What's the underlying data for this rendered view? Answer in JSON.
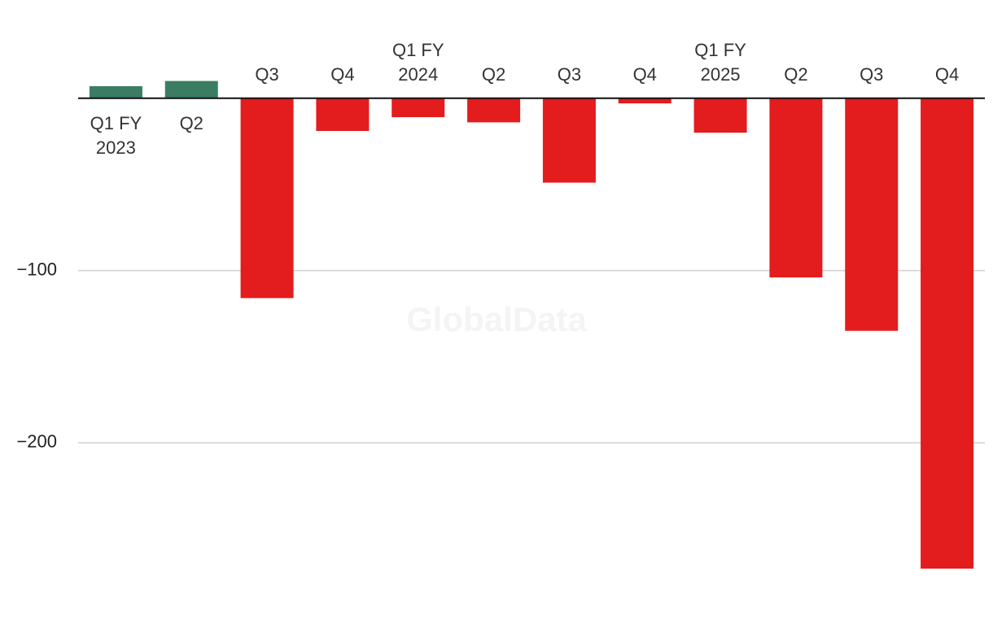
{
  "chart_data": {
    "type": "bar",
    "watermark": "GlobalData",
    "categories": [
      "Q1 FY 2023",
      "Q2",
      "Q3",
      "Q4",
      "Q1 FY 2024",
      "Q2",
      "Q3",
      "Q4",
      "Q1 FY 2025",
      "Q2",
      "Q3",
      "Q4"
    ],
    "values": [
      7,
      10,
      -116,
      -19,
      -11,
      -14,
      -49,
      -3,
      -20,
      -104,
      -135,
      -273
    ],
    "positive_color": "#3a7d63",
    "negative_color": "#e31c1d",
    "ylim": [
      -315,
      57
    ],
    "yticks": [
      {
        "value": -100,
        "label": "−100"
      },
      {
        "value": -200,
        "label": "−200"
      }
    ],
    "grid": true
  }
}
